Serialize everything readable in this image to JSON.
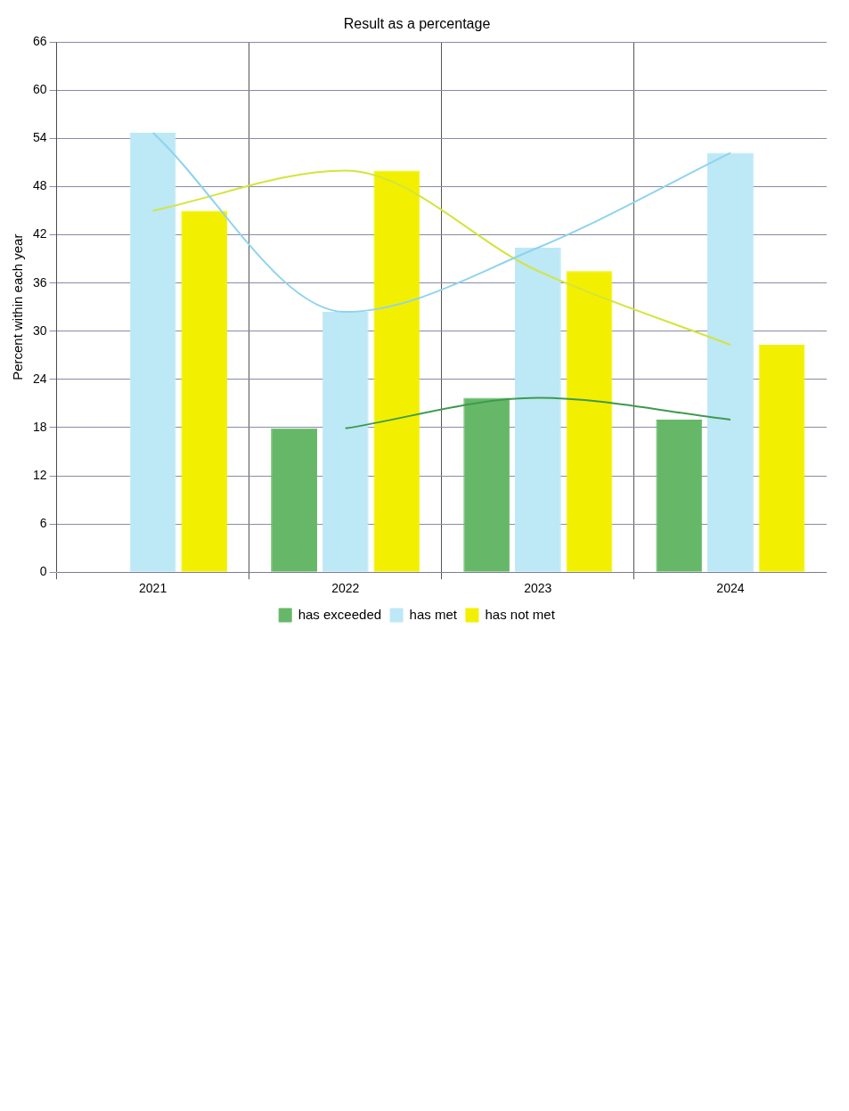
{
  "chart_data": {
    "type": "bar",
    "title": "Result as a percentage",
    "ylabel": "Percent within each year",
    "categories": [
      "2021",
      "2022",
      "2023",
      "2024"
    ],
    "series": [
      {
        "name": "has exceeded",
        "color": "#66b868",
        "values": [
          null,
          17.9,
          21.7,
          19.0
        ]
      },
      {
        "name": "has met",
        "color": "#bde8f6",
        "values": [
          54.7,
          32.4,
          40.4,
          52.2
        ]
      },
      {
        "name": "has not met",
        "color": "#f2f000",
        "values": [
          45.0,
          50.0,
          37.5,
          28.3
        ]
      },
      {
        "type": "line",
        "color": "#3f9a4f",
        "values": [
          null,
          17.9,
          21.7,
          19.0
        ]
      },
      {
        "type": "line",
        "color": "#8fd3ee",
        "values": [
          54.7,
          32.4,
          40.4,
          52.2
        ]
      },
      {
        "type": "line",
        "color": "#d4e43a",
        "values": [
          45.0,
          50.0,
          37.5,
          28.3
        ]
      }
    ],
    "ylim": [
      0,
      66
    ],
    "yticks": [
      0,
      6,
      12,
      18,
      24,
      30,
      36,
      42,
      48,
      54,
      60,
      66
    ],
    "grid": true,
    "legend": "bottom"
  }
}
